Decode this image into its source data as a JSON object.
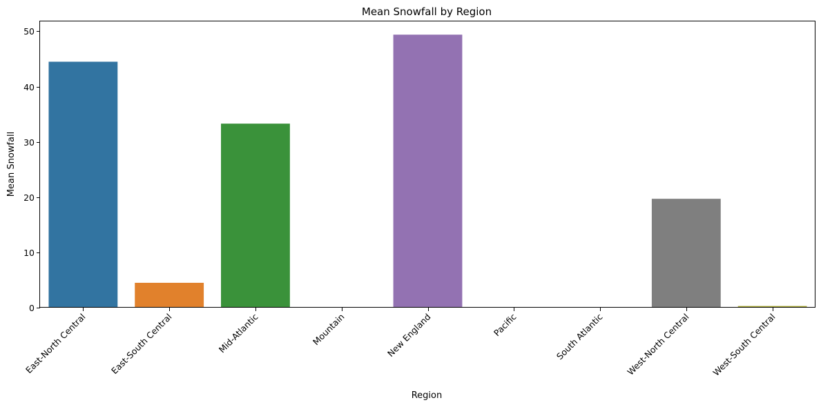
{
  "chart_data": {
    "type": "bar",
    "title": "Mean Snowfall by Region",
    "xlabel": "Region",
    "ylabel": "Mean Snowfall",
    "categories": [
      "East-North Central",
      "East-South Central",
      "Mid-Atlantic",
      "Mountain",
      "New England",
      "Pacific",
      "South Atlantic",
      "West-North Central",
      "West-South Central"
    ],
    "values": [
      44.5,
      4.5,
      33.3,
      0.0,
      49.4,
      0.0,
      0.0,
      19.7,
      0.3
    ],
    "colors": [
      "#3274a1",
      "#e1812c",
      "#3a923a",
      "#c03d3e",
      "#9372b2",
      "#845b53",
      "#d684bd",
      "#7f7f7f",
      "#a9aa35"
    ],
    "yticks": [
      0,
      10,
      20,
      30,
      40,
      50
    ],
    "ylim": [
      0,
      51.8
    ],
    "grid": false,
    "legend": "none"
  }
}
